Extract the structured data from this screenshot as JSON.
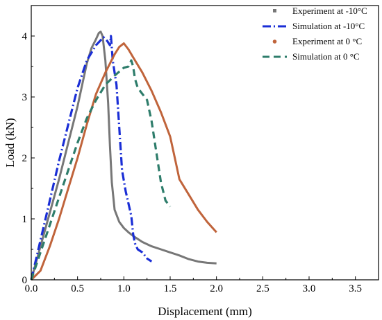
{
  "chart_data": {
    "type": "line",
    "xlabel": "Displacement (mm)",
    "ylabel": "Load (kN)",
    "xlim": [
      0,
      3.75
    ],
    "ylim": [
      0,
      4.5
    ],
    "xticks": [
      0.0,
      0.5,
      1.0,
      1.5,
      2.0,
      2.5,
      3.0,
      3.5
    ],
    "xtick_labels": [
      "0.0",
      "0.5",
      "1.0",
      "1.5",
      "2.0",
      "2.5",
      "3.0",
      "3.5"
    ],
    "yticks": [
      0,
      1,
      2,
      3,
      4
    ],
    "ytick_labels": [
      "0",
      "1",
      "2",
      "3",
      "4"
    ],
    "grid": false,
    "legend_position": "top-right",
    "series": [
      {
        "name": "Experiment at -10°C",
        "color": "#777777",
        "style": "solid",
        "marker": "square",
        "x": [
          0.0,
          0.1,
          0.2,
          0.3,
          0.4,
          0.5,
          0.6,
          0.65,
          0.7,
          0.73,
          0.75,
          0.77,
          0.8,
          0.83,
          0.85,
          0.87,
          0.9,
          0.95,
          1.0,
          1.05,
          1.1,
          1.2,
          1.3,
          1.4,
          1.5,
          1.6,
          1.7,
          1.8,
          1.9,
          2.0
        ],
        "y": [
          0.0,
          0.55,
          1.1,
          1.65,
          2.25,
          2.85,
          3.55,
          3.8,
          3.95,
          4.05,
          4.07,
          4.0,
          3.6,
          2.9,
          2.2,
          1.6,
          1.15,
          0.95,
          0.85,
          0.78,
          0.72,
          0.62,
          0.55,
          0.5,
          0.45,
          0.4,
          0.34,
          0.3,
          0.28,
          0.27
        ]
      },
      {
        "name": "Simulation at -10°C",
        "color": "#1a2ed6",
        "style": "dash-dot",
        "marker": "none",
        "x": [
          0.0,
          0.1,
          0.2,
          0.3,
          0.4,
          0.5,
          0.6,
          0.7,
          0.78,
          0.82,
          0.85,
          0.86,
          0.88,
          0.92,
          0.95,
          0.98,
          1.02,
          1.05,
          1.08,
          1.1,
          1.12,
          1.15,
          1.2,
          1.25,
          1.3
        ],
        "y": [
          0.0,
          0.65,
          1.3,
          1.95,
          2.55,
          3.15,
          3.6,
          3.85,
          3.98,
          3.92,
          3.85,
          4.0,
          3.6,
          3.2,
          2.5,
          1.8,
          1.45,
          1.25,
          1.05,
          0.75,
          0.6,
          0.5,
          0.45,
          0.35,
          0.3
        ]
      },
      {
        "name": "Experiment at 0 °C",
        "color": "#c0643b",
        "style": "solid",
        "marker": "circle",
        "x": [
          0.0,
          0.1,
          0.2,
          0.3,
          0.4,
          0.5,
          0.6,
          0.7,
          0.8,
          0.9,
          0.95,
          1.0,
          1.05,
          1.1,
          1.2,
          1.3,
          1.4,
          1.5,
          1.55,
          1.6,
          1.7,
          1.8,
          1.9,
          2.0
        ],
        "y": [
          0.0,
          0.15,
          0.55,
          1.0,
          1.5,
          2.0,
          2.55,
          3.05,
          3.4,
          3.7,
          3.82,
          3.88,
          3.78,
          3.65,
          3.4,
          3.1,
          2.75,
          2.35,
          2.0,
          1.65,
          1.4,
          1.15,
          0.95,
          0.78
        ]
      },
      {
        "name": "Simulation at 0 °C",
        "color": "#2e7d6b",
        "style": "dash",
        "marker": "none",
        "x": [
          0.0,
          0.1,
          0.2,
          0.3,
          0.4,
          0.5,
          0.6,
          0.7,
          0.8,
          0.9,
          1.0,
          1.05,
          1.08,
          1.1,
          1.12,
          1.15,
          1.2,
          1.25,
          1.3,
          1.35,
          1.4,
          1.45,
          1.5
        ],
        "y": [
          0.0,
          0.45,
          0.9,
          1.35,
          1.8,
          2.25,
          2.65,
          2.95,
          3.2,
          3.35,
          3.48,
          3.5,
          3.6,
          3.5,
          3.3,
          3.15,
          3.05,
          2.95,
          2.6,
          2.1,
          1.6,
          1.3,
          1.2
        ]
      }
    ]
  }
}
